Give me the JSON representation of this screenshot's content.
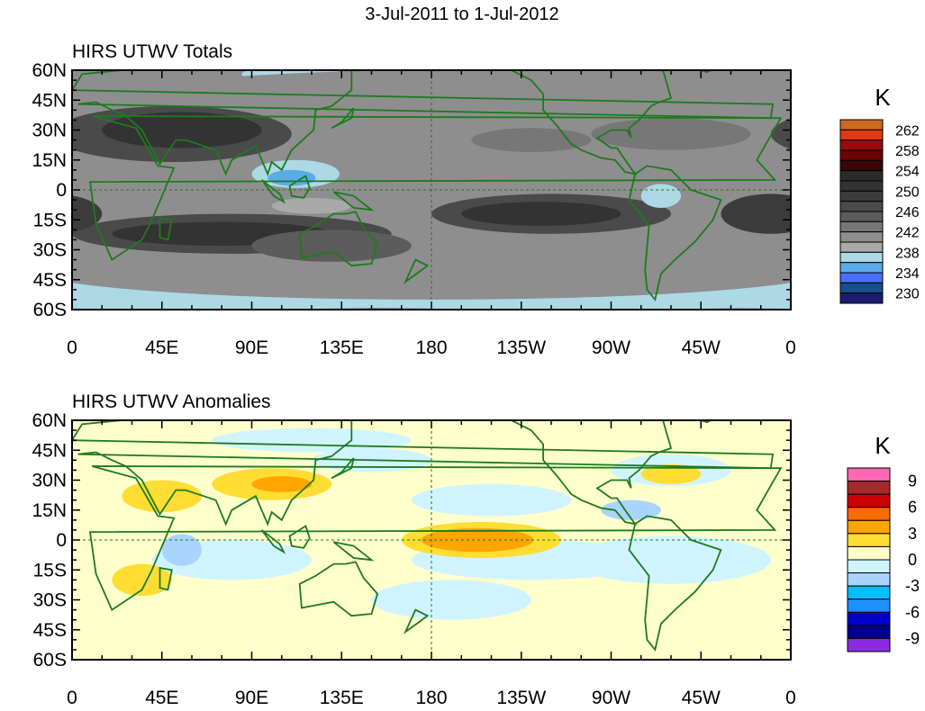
{
  "figure_title": "3-Jul-2011 to 1-Jul-2012",
  "lat_labels": [
    "60N",
    "45N",
    "30N",
    "15N",
    "0",
    "15S",
    "30S",
    "45S",
    "60S"
  ],
  "lon_labels": [
    "0",
    "45E",
    "90E",
    "135E",
    "180",
    "135W",
    "90W",
    "45W",
    "0"
  ],
  "panels": [
    {
      "title": "HIRS UTWV Totals",
      "colorbar": {
        "unit": "K",
        "labels": [
          "262",
          "258",
          "254",
          "250",
          "246",
          "242",
          "238",
          "234",
          "230"
        ],
        "colors": [
          "#cc6a1f",
          "#e03a10",
          "#9b0a0a",
          "#6a0505",
          "#3a0606",
          "#2b2b2b",
          "#333333",
          "#3c3c3c",
          "#4a4a4a",
          "#5c5c5c",
          "#777777",
          "#8e8e8e",
          "#a9a9a9",
          "#add8e6",
          "#5aabea",
          "#4a6fff",
          "#155090",
          "#1a1c70"
        ]
      }
    },
    {
      "title": "HIRS UTWV Anomalies",
      "colorbar": {
        "unit": "K",
        "labels": [
          "9",
          "6",
          "3",
          "0",
          "-3",
          "-6",
          "-9"
        ],
        "colors": [
          "#ff69b4",
          "#a52a2a",
          "#cc0000",
          "#ff6a00",
          "#ffa500",
          "#ffdd33",
          "#ffffcc",
          "#d0f4ff",
          "#a8d4ff",
          "#00bfff",
          "#1e90ff",
          "#0000cd",
          "#00008b",
          "#8a2be2"
        ]
      }
    }
  ]
}
